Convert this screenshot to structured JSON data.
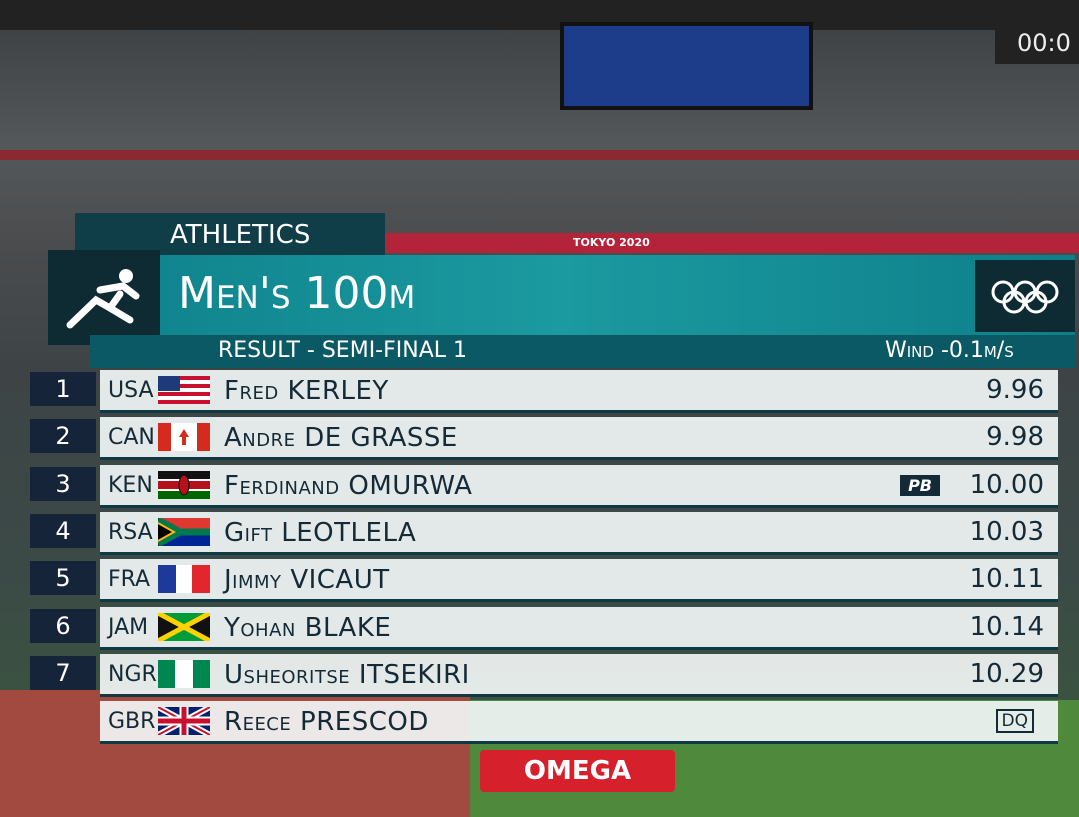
{
  "header": {
    "sport": "ATHLETICS",
    "event": "Men's 100m",
    "subtitle": "RESULT - SEMI-FINAL 1",
    "wind": "Wind -0.1m/s"
  },
  "results": {
    "rows": [
      {
        "rank": 1,
        "country": "USA",
        "first_name": "Fred",
        "last_name": "KERLEY",
        "mark": "9.96"
      },
      {
        "rank": 2,
        "country": "CAN",
        "first_name": "Andre",
        "last_name": "DE GRASSE",
        "mark": "9.98"
      },
      {
        "rank": 3,
        "country": "KEN",
        "first_name": "Ferdinand",
        "last_name": "OMURWA",
        "badge": "PB",
        "mark": "10.00"
      },
      {
        "rank": 4,
        "country": "RSA",
        "first_name": "Gift",
        "last_name": "LEOTLELA",
        "mark": "10.03"
      },
      {
        "rank": 5,
        "country": "FRA",
        "first_name": "Jimmy",
        "last_name": "VICAUT",
        "mark": "10.11"
      },
      {
        "rank": 6,
        "country": "JAM",
        "first_name": "Yohan",
        "last_name": "BLAKE",
        "mark": "10.14"
      },
      {
        "rank": 7,
        "country": "NGR",
        "first_name": "Usheoritse",
        "last_name": "ITSEKIRI",
        "mark": "10.29"
      },
      {
        "country": "GBR",
        "first_name": "Reece",
        "last_name": "PRESCOD",
        "mark": "DQ"
      }
    ]
  },
  "background": {
    "banner": "TOKYO 2020",
    "sponsor": "OMEGA",
    "clock": "00:0"
  }
}
